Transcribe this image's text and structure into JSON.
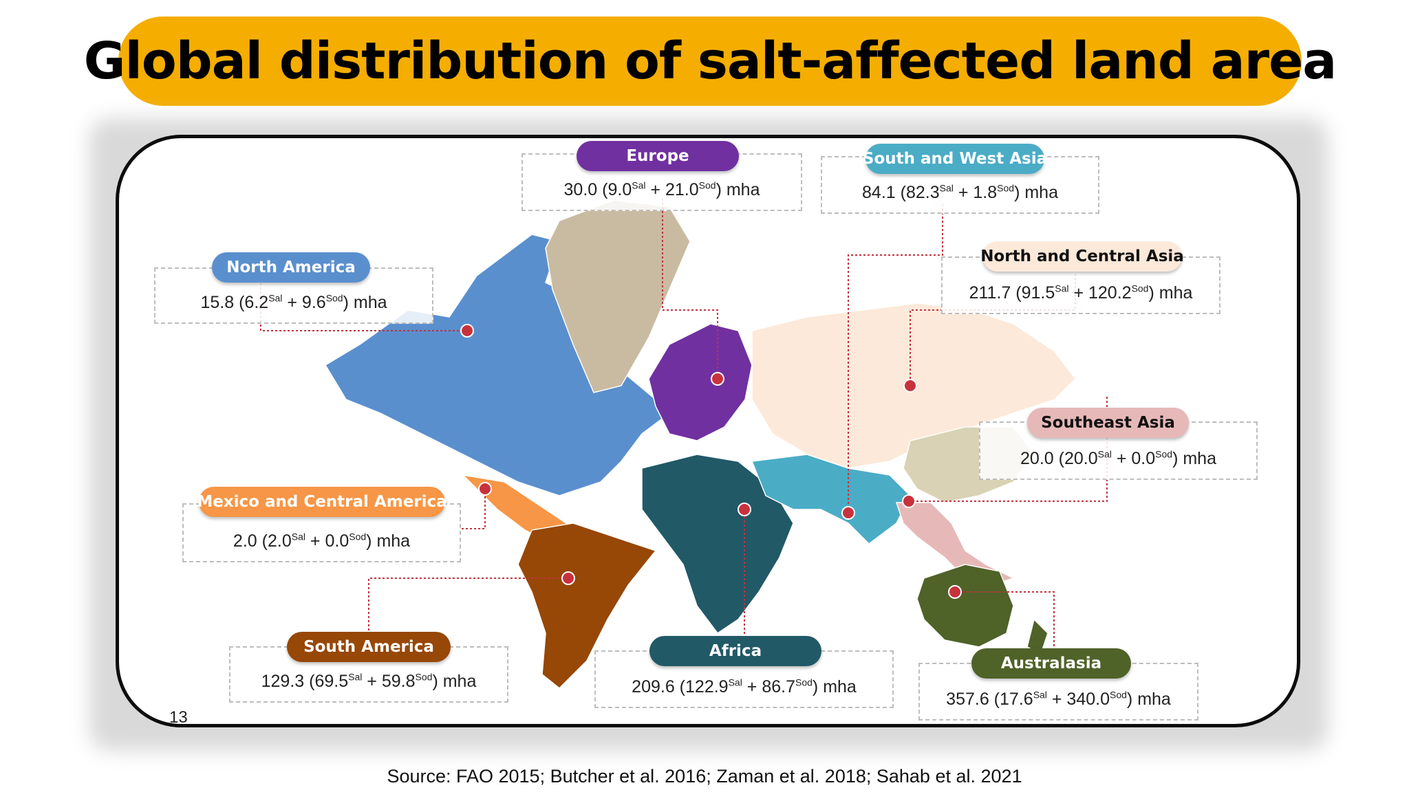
{
  "title": "Global distribution of salt-affected land area",
  "page_number": "13",
  "source": "Source: FAO 2015; Butcher et al. 2016; Zaman et al. 2018; Sahab et al. 2021",
  "superscripts": {
    "saline": "Sal",
    "sodic": "Sod"
  },
  "unit": "mha",
  "regions": [
    {
      "name": "North America",
      "total": "15.8",
      "saline": "6.2",
      "sodic": "9.6",
      "color": "#5a8fce"
    },
    {
      "name": "Europe",
      "total": "30.0",
      "saline": "9.0",
      "sodic": "21.0",
      "color": "#7030a0"
    },
    {
      "name": "South and West Asia",
      "total": "84.1",
      "saline": "82.3",
      "sodic": "1.8",
      "color": "#4bacc6"
    },
    {
      "name": "North and Central Asia",
      "total": "211.7",
      "saline": "91.5",
      "sodic": "120.2",
      "color": "#fde9d9"
    },
    {
      "name": "Southeast Asia",
      "total": "20.0",
      "saline": "20.0",
      "sodic": "0.0",
      "color": "#e6b9b8"
    },
    {
      "name": "Mexico and Central America",
      "total": "2.0",
      "saline": "2.0",
      "sodic": "0.0",
      "color": "#f79646"
    },
    {
      "name": "South America",
      "total": "129.3",
      "saline": "69.5",
      "sodic": "59.8",
      "color": "#974706"
    },
    {
      "name": "Africa",
      "total": "209.6",
      "saline": "122.9",
      "sodic": "86.7",
      "color": "#215967"
    },
    {
      "name": "Australasia",
      "total": "357.6",
      "saline": "17.6",
      "sodic": "340.0",
      "color": "#4f6228"
    }
  ],
  "land_colors": {
    "greenland": "#c9bba2",
    "east_asia": "#d9d2b5"
  }
}
